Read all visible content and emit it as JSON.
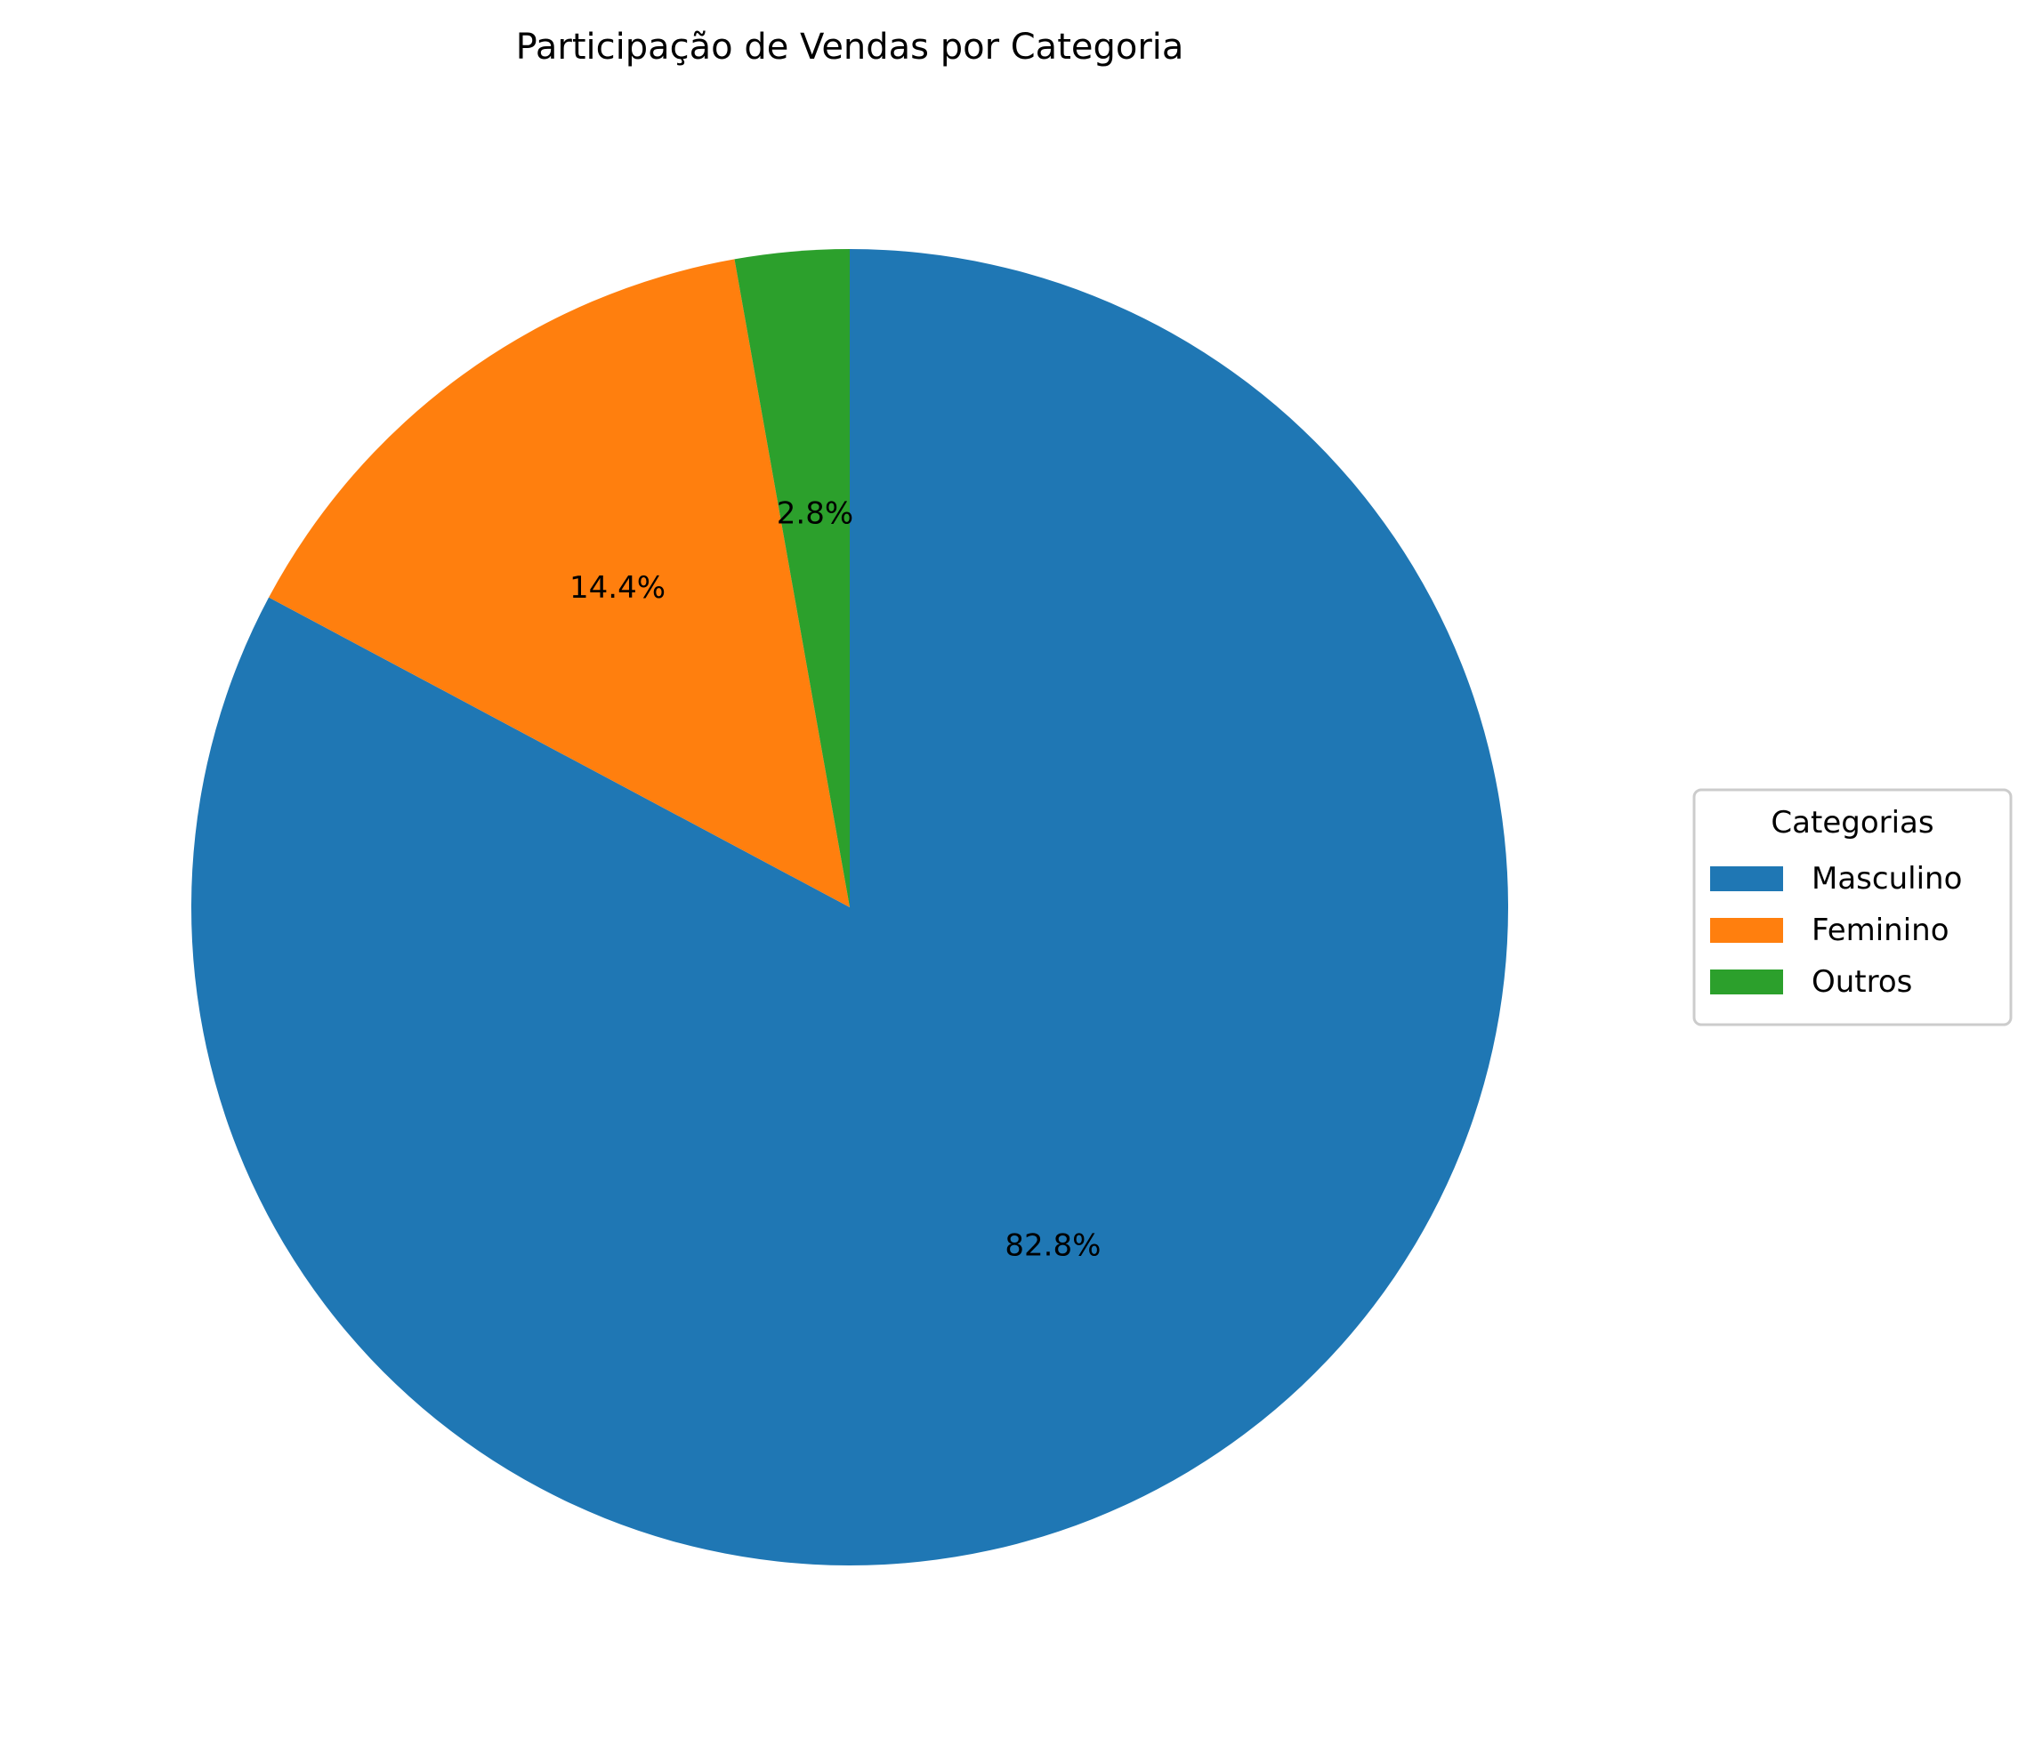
{
  "chart_data": {
    "type": "pie",
    "title": "Participação de Vendas por Categoria",
    "start_angle_deg": 90,
    "direction": "clockwise",
    "slices": [
      {
        "label": "Masculino",
        "value": 82.8,
        "pct_label": "82.8%",
        "color": "#1f77b4"
      },
      {
        "label": "Feminino",
        "value": 14.4,
        "pct_label": "14.4%",
        "color": "#ff7f0e"
      },
      {
        "label": "Outros",
        "value": 2.8,
        "pct_label": "2.8%",
        "color": "#2ca02c"
      }
    ],
    "legend": {
      "title": "Categorias",
      "placement": "center-right, outside plot"
    }
  }
}
